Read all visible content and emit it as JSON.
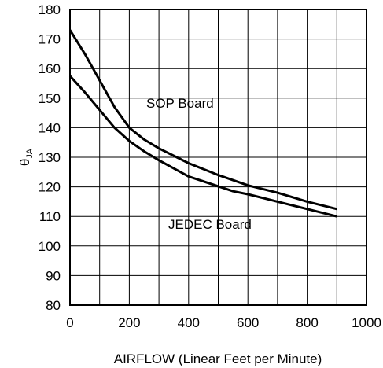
{
  "chart_data": {
    "type": "line",
    "xlabel": "AIRFLOW (Linear Feet per Minute)",
    "ylabel": {
      "symbol": "θ",
      "subscript": "JA"
    },
    "xlim": [
      0,
      1000
    ],
    "ylim": [
      80,
      180
    ],
    "x_ticks": [
      "0",
      "200",
      "400",
      "600",
      "800",
      "1000"
    ],
    "y_ticks": [
      "80",
      "90",
      "100",
      "110",
      "120",
      "130",
      "140",
      "150",
      "160",
      "170",
      "180"
    ],
    "grid": true,
    "series": [
      {
        "name": "SOP Board",
        "x": [
          0,
          50,
          100,
          150,
          200,
          250,
          300,
          400,
          500,
          600,
          700,
          800,
          900
        ],
        "y": [
          173,
          165,
          156,
          147,
          140,
          136,
          133,
          128,
          124,
          120.5,
          118,
          115,
          112.5
        ]
      },
      {
        "name": "JEDEC Board",
        "x": [
          0,
          50,
          100,
          150,
          200,
          250,
          300,
          400,
          550,
          600,
          700,
          800,
          900
        ],
        "y": [
          157.5,
          152,
          146,
          140,
          135.5,
          132,
          129,
          123.5,
          118.5,
          117.5,
          115,
          112.5,
          110
        ]
      }
    ]
  }
}
